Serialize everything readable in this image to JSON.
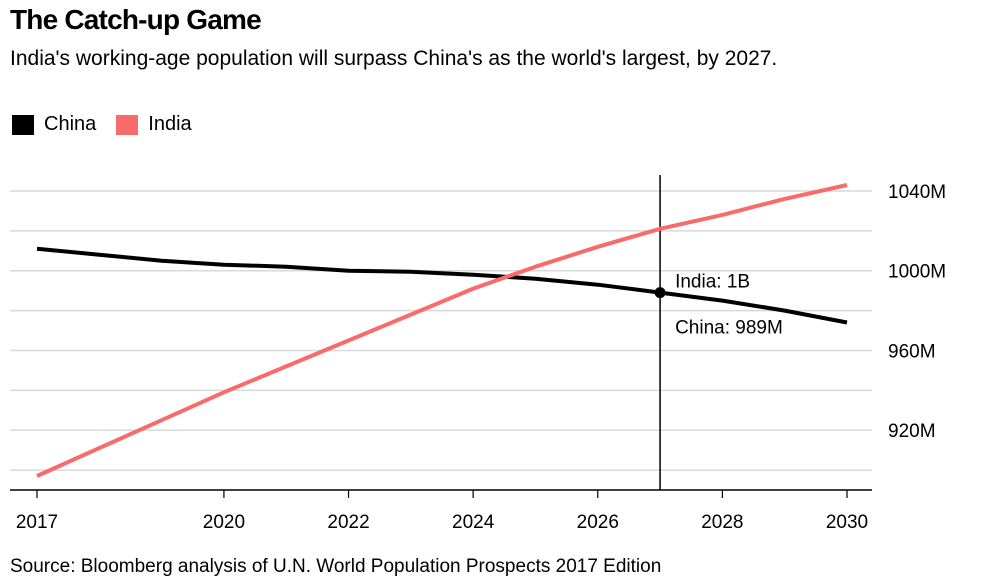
{
  "header": {
    "title": "The Catch-up Game",
    "subtitle": "India's working-age population will surpass China's as the world's largest, by 2027."
  },
  "legend": [
    {
      "label": "China",
      "color": "#000000"
    },
    {
      "label": "India",
      "color": "#f96b6b"
    }
  ],
  "source": "Source: Bloomberg analysis of U.N. World Population Prospects 2017 Edition",
  "chart_data": {
    "type": "line",
    "title": "The Catch-up Game",
    "subtitle": "India's working-age population will surpass China's as the world's largest, by 2027.",
    "xlabel": "",
    "ylabel": "",
    "x": [
      2017,
      2018,
      2019,
      2020,
      2021,
      2022,
      2023,
      2024,
      2025,
      2026,
      2027,
      2028,
      2029,
      2030
    ],
    "xlim": [
      2017,
      2030
    ],
    "ylim": [
      890,
      1048
    ],
    "x_tick_values": [
      2017,
      2020,
      2022,
      2024,
      2026,
      2028,
      2030
    ],
    "x_tick_labels": [
      "2017",
      "2020",
      "2022",
      "2024",
      "2026",
      "2028",
      "2030"
    ],
    "y_tick_values": [
      920,
      960,
      1000,
      1040
    ],
    "y_tick_labels": [
      "920M",
      "960M",
      "1000M",
      "1040M"
    ],
    "y_gridlines": [
      900,
      920,
      940,
      960,
      980,
      1000,
      1020,
      1040
    ],
    "grid": true,
    "y_axis_side": "right",
    "legend_position": "top-left",
    "series": [
      {
        "name": "China",
        "color": "#000000",
        "values": [
          1011,
          1008,
          1005,
          1003,
          1002,
          1000,
          999.5,
          998,
          996,
          993,
          989,
          985,
          980,
          974
        ]
      },
      {
        "name": "India",
        "color": "#f96b6b",
        "values": [
          897,
          911,
          925,
          939,
          952,
          965,
          978,
          991,
          1002,
          1012,
          1021,
          1028,
          1036,
          1043
        ]
      }
    ],
    "reference_line": {
      "x": 2027
    },
    "annotations": [
      {
        "text": "India: 1B",
        "x": 2027,
        "y": 1000
      },
      {
        "text": "China: 989M",
        "x": 2027,
        "y": 989
      }
    ],
    "marker": {
      "x": 2027,
      "y": 989
    }
  }
}
